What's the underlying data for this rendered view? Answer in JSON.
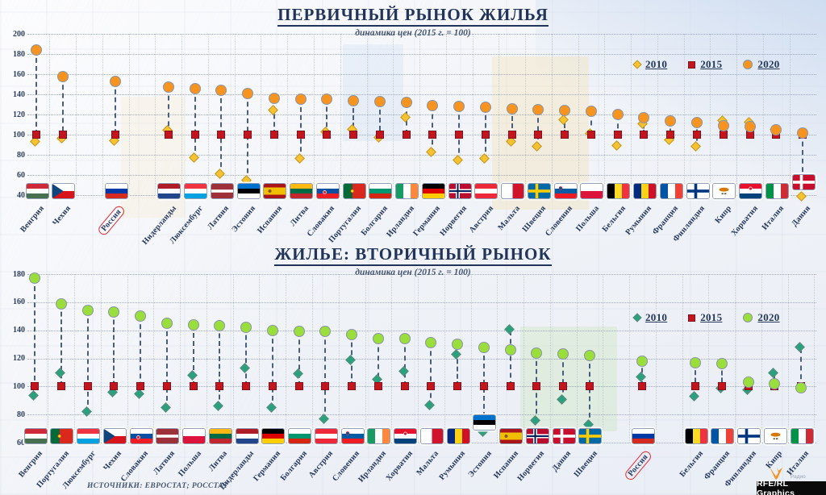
{
  "page": {
    "source_note": "ИСТОЧНИКИ: ЕВРОСТАТ; РОССТАТ",
    "credit": "RFE/RL Graphics",
    "credit_brand": "Радио"
  },
  "colors": {
    "navy_text": "#22345a",
    "series_2015_red": "#c2151e",
    "top_2010_gold": "#f5c332",
    "top_2020_orange": "#f79420",
    "bottom_2010_teal": "#2aa07d",
    "bottom_2020_green": "#9ade3c",
    "russia_highlight_red": "#e02b2b",
    "dash_line": "#41577a"
  },
  "chart_data": [
    {
      "type": "scatter",
      "title": "ПЕРВИЧНЫЙ РЫНОК ЖИЛЬЯ",
      "subtitle": "динамика цен (2015 г. = 100)",
      "ylim": [
        40,
        200
      ],
      "yticks": [
        200,
        180,
        160,
        140,
        120,
        100,
        80,
        60,
        40
      ],
      "grid": "dotted",
      "legend_position": "top-right",
      "legend": [
        {
          "label": "2010",
          "marker": "diamond",
          "color": "#f5c332"
        },
        {
          "label": "2015",
          "marker": "square",
          "color": "#c2151e"
        },
        {
          "label": "2020",
          "marker": "circle",
          "color": "#f79420"
        }
      ],
      "series_note": "2015 = 100 for every country",
      "columns": [
        {
          "name": "Венгрия",
          "flag": "hu",
          "v2010": 92,
          "v2015": 100,
          "v2020": 184
        },
        {
          "name": "Чехия",
          "flag": "cz",
          "v2010": 95,
          "v2015": 100,
          "v2020": 158
        },
        {
          "gap": true
        },
        {
          "name": "Россия",
          "flag": "ru",
          "highlight": true,
          "v2010": 93,
          "v2015": 100,
          "v2020": 153
        },
        {
          "gap": true
        },
        {
          "name": "Нидерланды",
          "flag": "nl",
          "v2010": 103,
          "v2015": 100,
          "v2020": 147
        },
        {
          "name": "Люксембург",
          "flag": "lu",
          "v2010": 76,
          "v2015": 100,
          "v2020": 146
        },
        {
          "name": "Латвия",
          "flag": "lv",
          "v2010": 60,
          "v2015": 100,
          "v2020": 144
        },
        {
          "name": "Эстония",
          "flag": "ee",
          "v2010": 54,
          "v2015": 100,
          "v2020": 141
        },
        {
          "name": "Испания",
          "flag": "es",
          "v2010": 123,
          "v2015": 100,
          "v2020": 136
        },
        {
          "name": "Литва",
          "flag": "lt",
          "v2010": 75,
          "v2015": 100,
          "v2020": 135
        },
        {
          "name": "Словакия",
          "flag": "sk",
          "v2010": 102,
          "v2015": 100,
          "v2020": 135
        },
        {
          "name": "Португалия",
          "flag": "pt",
          "v2010": 104,
          "v2015": 100,
          "v2020": 134
        },
        {
          "name": "Болгария",
          "flag": "bg",
          "v2010": 96,
          "v2015": 100,
          "v2020": 133
        },
        {
          "name": "Ирландия",
          "flag": "ie",
          "v2010": 116,
          "v2015": 100,
          "v2020": 132
        },
        {
          "name": "Германия",
          "flag": "de",
          "v2010": 82,
          "v2015": 100,
          "v2020": 129
        },
        {
          "name": "Норвегия",
          "flag": "no",
          "v2010": 74,
          "v2015": 100,
          "v2020": 128
        },
        {
          "name": "Австрия",
          "flag": "at",
          "v2010": 75,
          "v2015": 100,
          "v2020": 127
        },
        {
          "name": "Мальта",
          "flag": "mt",
          "v2010": 92,
          "v2015": 100,
          "v2020": 126
        },
        {
          "name": "Швеция",
          "flag": "se",
          "v2010": 87,
          "v2015": 100,
          "v2020": 125
        },
        {
          "name": "Словения",
          "flag": "si",
          "v2010": 114,
          "v2015": 100,
          "v2020": 124
        },
        {
          "name": "Польша",
          "flag": "pl",
          "v2010": 100,
          "v2015": 100,
          "v2020": 123
        },
        {
          "name": "Бельгия",
          "flag": "be",
          "v2010": 88,
          "v2015": 100,
          "v2020": 120
        },
        {
          "name": "Румыния",
          "flag": "ro",
          "v2010": 110,
          "v2015": 100,
          "v2020": 117
        },
        {
          "name": "Франция",
          "flag": "fr",
          "v2010": 94,
          "v2015": 100,
          "v2020": 114
        },
        {
          "name": "Финляндия",
          "flag": "fi",
          "v2010": 87,
          "v2015": 100,
          "v2020": 112
        },
        {
          "name": "Кипр",
          "flag": "cy",
          "v2010": 113,
          "v2015": 100,
          "v2020": 109
        },
        {
          "name": "Хорватия",
          "flag": "hr",
          "v2010": 111,
          "v2015": 100,
          "v2020": 108
        },
        {
          "name": "Италия",
          "flag": "it",
          "v2010": 104,
          "v2015": 100,
          "v2020": 105
        },
        {
          "name": "Дания",
          "flag": "dk",
          "raise_flag": true,
          "v2010": 38,
          "v2015": 100,
          "v2020": 102
        }
      ]
    },
    {
      "type": "scatter",
      "title": "ЖИЛЬЕ: ВТОРИЧНЫЙ РЫНОК",
      "subtitle": "динамика цен (2015 г. = 100)",
      "ylim": [
        60,
        180
      ],
      "yticks": [
        180,
        160,
        140,
        120,
        100,
        80,
        60
      ],
      "grid": "dotted",
      "legend_position": "top-right",
      "legend": [
        {
          "label": "2010",
          "marker": "diamond",
          "color": "#2aa07d"
        },
        {
          "label": "2015",
          "marker": "square",
          "color": "#c2151e"
        },
        {
          "label": "2020",
          "marker": "circle",
          "color": "#9ade3c"
        }
      ],
      "series_note": "2015 = 100 for every country",
      "columns": [
        {
          "name": "Венгрия",
          "flag": "hu",
          "v2010": 93,
          "v2015": 100,
          "v2020": 177
        },
        {
          "name": "Португалия",
          "flag": "pt",
          "v2010": 109,
          "v2015": 100,
          "v2020": 159
        },
        {
          "name": "Люксембург",
          "flag": "lu",
          "v2010": 81,
          "v2015": 100,
          "v2020": 154
        },
        {
          "name": "Чехия",
          "flag": "cz",
          "v2010": 95,
          "v2015": 100,
          "v2020": 153
        },
        {
          "name": "Словакия",
          "flag": "sk",
          "v2010": 94,
          "v2015": 100,
          "v2020": 150
        },
        {
          "name": "Латвия",
          "flag": "lv",
          "v2010": 84,
          "v2015": 100,
          "v2020": 145
        },
        {
          "name": "Польша",
          "flag": "pl",
          "v2010": 107,
          "v2015": 100,
          "v2020": 144
        },
        {
          "name": "Литва",
          "flag": "lt",
          "v2010": 85,
          "v2015": 100,
          "v2020": 143
        },
        {
          "name": "Нидерланды",
          "flag": "nl",
          "v2010": 112,
          "v2015": 100,
          "v2020": 142
        },
        {
          "name": "Германия",
          "flag": "de",
          "v2010": 84,
          "v2015": 100,
          "v2020": 140
        },
        {
          "name": "Болгария",
          "flag": "bg",
          "v2010": 108,
          "v2015": 100,
          "v2020": 139
        },
        {
          "name": "Австрия",
          "flag": "at",
          "v2010": 76,
          "v2015": 100,
          "v2020": 139
        },
        {
          "name": "Словения",
          "flag": "si",
          "v2010": 118,
          "v2015": 100,
          "v2020": 137
        },
        {
          "name": "Ирландия",
          "flag": "ie",
          "v2010": 104,
          "v2015": 100,
          "v2020": 134
        },
        {
          "name": "Хорватия",
          "flag": "hr",
          "v2010": 110,
          "v2015": 100,
          "v2020": 134
        },
        {
          "name": "Мальта",
          "flag": "mt",
          "v2010": 86,
          "v2015": 100,
          "v2020": 131
        },
        {
          "name": "Румыния",
          "flag": "ro",
          "v2010": 122,
          "v2015": 100,
          "v2020": 130
        },
        {
          "name": "Эстония",
          "flag": "ee",
          "raise_flag": true,
          "v2010": 67,
          "v2015": 100,
          "v2020": 128
        },
        {
          "name": "Испания",
          "flag": "es",
          "v2010": 140,
          "v2015": 100,
          "v2020": 126
        },
        {
          "name": "Норвегия",
          "flag": "no",
          "v2010": 75,
          "v2015": 100,
          "v2020": 124
        },
        {
          "name": "Дания",
          "flag": "dk",
          "v2010": 90,
          "v2015": 100,
          "v2020": 123
        },
        {
          "name": "Швеция",
          "flag": "se",
          "v2010": 72,
          "v2015": 100,
          "v2020": 122
        },
        {
          "gap": true
        },
        {
          "name": "Россия",
          "flag": "ru",
          "highlight": true,
          "v2010": 106,
          "v2015": 100,
          "v2020": 118
        },
        {
          "gap": true
        },
        {
          "name": "Бельгия",
          "flag": "be",
          "v2010": 92,
          "v2015": 100,
          "v2020": 117
        },
        {
          "name": "Франция",
          "flag": "fr",
          "v2010": 98,
          "v2015": 100,
          "v2020": 116
        },
        {
          "name": "Финляндия",
          "flag": "fi",
          "v2010": 97,
          "v2015": 100,
          "v2020": 103
        },
        {
          "name": "Кипр",
          "flag": "cy",
          "v2010": 109,
          "v2015": 100,
          "v2020": 102
        },
        {
          "name": "Италия",
          "flag": "it",
          "v2010": 127,
          "v2015": 100,
          "v2020": 99
        }
      ]
    }
  ]
}
